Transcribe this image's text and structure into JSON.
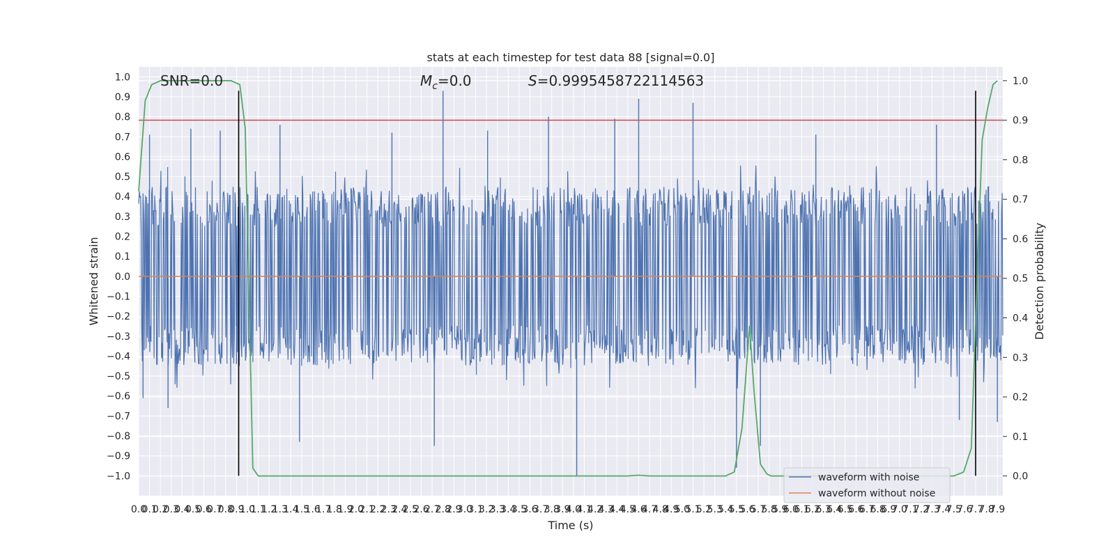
{
  "chart_data": {
    "type": "line",
    "title": "stats at each timestep for test data 88 [signal=0.0]",
    "xlabel": "Time (s)",
    "ylabel": "Whitened strain",
    "y2label": "Detection probability",
    "xlim": [
      0.0,
      7.95
    ],
    "ylim": [
      -1.1,
      1.05
    ],
    "y2lim": [
      -0.05,
      1.035
    ],
    "x_tick_step": 0.1,
    "x_tick_max": 7.9,
    "y_ticks": [
      1.0,
      0.9,
      0.8,
      0.7,
      0.6,
      0.5,
      0.4,
      0.3,
      0.2,
      0.1,
      0.0,
      -0.1,
      -0.2,
      -0.3,
      -0.4,
      -0.5,
      -0.6,
      -0.7,
      -0.8,
      -0.9,
      -1.0
    ],
    "y2_ticks": [
      1.0,
      0.9,
      0.8,
      0.7,
      0.6,
      0.5,
      0.4,
      0.3,
      0.2,
      0.1,
      0.0
    ],
    "grid": true,
    "legend_position": "lower-right",
    "annotations": {
      "snr": "SNR=0.0",
      "mc_symbol": "M",
      "mc_sub": "c",
      "mc_value": "=0.0",
      "s_symbol": "S",
      "s_value": "=0.9995458722114563"
    },
    "series": [
      {
        "name": "waveform with noise",
        "color": "#4c72b0",
        "kind": "noise",
        "band_y": [
          -0.45,
          0.45
        ],
        "peaks": [
          {
            "x": 0.04,
            "y": -0.61
          },
          {
            "x": 0.1,
            "y": 0.71
          },
          {
            "x": 0.27,
            "y": -0.66
          },
          {
            "x": 0.48,
            "y": 0.74
          },
          {
            "x": 0.75,
            "y": 0.73
          },
          {
            "x": 0.9,
            "y": -0.44
          },
          {
            "x": 1.3,
            "y": 0.76
          },
          {
            "x": 1.48,
            "y": -0.83
          },
          {
            "x": 2.33,
            "y": 0.72
          },
          {
            "x": 2.72,
            "y": -0.85
          },
          {
            "x": 2.8,
            "y": 0.93
          },
          {
            "x": 3.21,
            "y": 0.73
          },
          {
            "x": 3.77,
            "y": 0.8
          },
          {
            "x": 4.03,
            "y": -1.0
          },
          {
            "x": 4.38,
            "y": 0.79
          },
          {
            "x": 4.6,
            "y": 0.89
          },
          {
            "x": 5.1,
            "y": 0.87
          },
          {
            "x": 5.5,
            "y": -0.96
          },
          {
            "x": 5.72,
            "y": -0.85
          },
          {
            "x": 6.23,
            "y": 0.71
          },
          {
            "x": 7.34,
            "y": 0.76
          },
          {
            "x": 7.55,
            "y": -0.72
          },
          {
            "x": 7.9,
            "y": -0.73
          }
        ]
      },
      {
        "name": "waveform without noise",
        "color": "#dd8452",
        "values_x": [
          0.0,
          7.95
        ],
        "values_y": [
          0.0,
          0.0
        ]
      },
      {
        "name": "detection probability",
        "color": "#55a868",
        "axis": "right",
        "x": [
          0.0,
          0.06,
          0.12,
          0.2,
          0.4,
          0.6,
          0.85,
          0.93,
          0.98,
          1.05,
          1.1,
          1.2,
          2.0,
          3.0,
          4.0,
          4.5,
          4.6,
          4.7,
          4.8,
          5.0,
          5.4,
          5.48,
          5.55,
          5.62,
          5.66,
          5.72,
          5.78,
          5.82,
          5.87,
          5.92,
          6.0,
          6.5,
          7.0,
          7.3,
          7.5,
          7.59,
          7.66,
          7.72,
          7.76,
          7.81,
          7.86,
          7.9
        ],
        "y": [
          0.72,
          0.95,
          0.99,
          1.0,
          1.0,
          1.0,
          1.0,
          0.99,
          0.88,
          0.02,
          0.0,
          0.0,
          0.0,
          0.0,
          0.0,
          0.0,
          0.002,
          0.0,
          0.0,
          0.0,
          0.0,
          0.01,
          0.12,
          0.38,
          0.22,
          0.03,
          0.005,
          0.0,
          0.0,
          0.0,
          0.0,
          0.0,
          0.0,
          0.0,
          0.0,
          0.01,
          0.07,
          0.55,
          0.85,
          0.93,
          0.99,
          1.0
        ]
      }
    ],
    "vlines": [
      {
        "x": 0.92,
        "y0": -1.0,
        "y1": 0.93
      },
      {
        "x": 7.7,
        "y0": -1.0,
        "y1": 0.93
      }
    ],
    "threshold_line": {
      "y2": 0.9,
      "color": "#c44e52"
    }
  }
}
